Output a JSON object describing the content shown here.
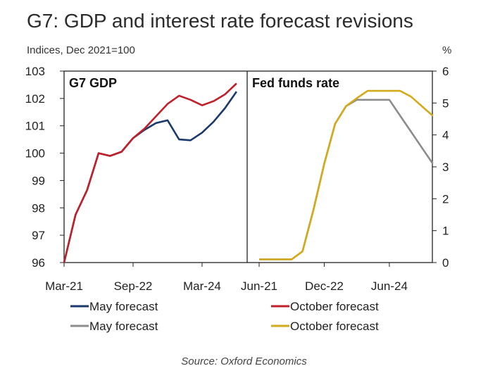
{
  "title": "G7: GDP and interest rate forecast revisions",
  "source": "Source: Oxford Economics",
  "chart_data": [
    {
      "type": "line",
      "panel_title": "G7 GDP",
      "ylabel": "Indices, Dec 2021=100",
      "ylim": [
        96,
        103
      ],
      "y_ticks": [
        96,
        97,
        98,
        99,
        100,
        101,
        102,
        103
      ],
      "x_tick_labels": [
        "Mar-21",
        "Sep-22",
        "Mar-24"
      ],
      "x": [
        "Q1-21",
        "Q2-21",
        "Q3-21",
        "Q4-21",
        "Q1-22",
        "Q2-22",
        "Q3-22",
        "Q4-22",
        "Q1-23",
        "Q2-23",
        "Q3-23",
        "Q4-23",
        "Q1-24",
        "Q2-24",
        "Q3-24",
        "Q4-24",
        "Q1-25",
        "Q2-25"
      ],
      "series": [
        {
          "name": "May forecast",
          "color": "#1b3a6b",
          "values": [
            96.0,
            97.75,
            98.65,
            100.0,
            99.9,
            100.05,
            100.55,
            100.85,
            101.1,
            101.2,
            100.5,
            100.47,
            100.75,
            101.15,
            101.65,
            102.25,
            null,
            null
          ]
        },
        {
          "name": "October forecast",
          "color": "#c0202a",
          "values": [
            96.0,
            97.75,
            98.65,
            100.0,
            99.9,
            100.05,
            100.55,
            100.9,
            101.35,
            101.8,
            102.1,
            101.95,
            101.75,
            101.9,
            102.15,
            102.55,
            null,
            null
          ]
        }
      ]
    },
    {
      "type": "line",
      "panel_title": "Fed funds rate",
      "ylabel": "%",
      "ylim": [
        0,
        6
      ],
      "y_ticks": [
        0,
        1,
        2,
        3,
        4,
        5,
        6
      ],
      "x_tick_labels": [
        "Jun-21",
        "Dec-22",
        "Jun-24"
      ],
      "x": [
        "Q2-21",
        "Q3-21",
        "Q4-21",
        "Q1-22",
        "Q2-22",
        "Q3-22",
        "Q4-22",
        "Q1-23",
        "Q2-23",
        "Q3-23",
        "Q4-23",
        "Q1-24",
        "Q2-24",
        "Q3-24",
        "Q4-24",
        "Q1-25",
        "Q2-25"
      ],
      "series": [
        {
          "name": "May forecast",
          "color": "#8c8c8c",
          "values": [
            0.1,
            0.1,
            0.1,
            0.1,
            0.35,
            1.65,
            3.1,
            4.35,
            4.9,
            5.1,
            5.1,
            5.1,
            5.1,
            4.6,
            4.1,
            3.6,
            3.1
          ]
        },
        {
          "name": "October forecast",
          "color": "#d4aa1a",
          "values": [
            0.1,
            0.1,
            0.1,
            0.1,
            0.35,
            1.65,
            3.1,
            4.35,
            4.9,
            5.15,
            5.38,
            5.38,
            5.38,
            5.38,
            5.2,
            4.9,
            4.6
          ]
        }
      ]
    }
  ]
}
